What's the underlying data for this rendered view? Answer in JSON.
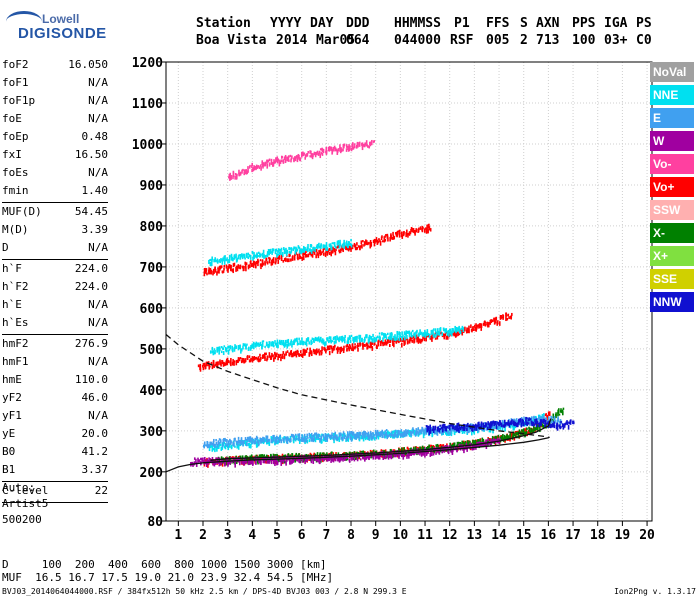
{
  "logo": {
    "line1": "Lowell",
    "line2": "DIGISONDE"
  },
  "header": {
    "labels": [
      "Station",
      "YYYY",
      "DAY",
      "DDD",
      "HHMMSS",
      "P1",
      "FFS",
      "S",
      "AXN",
      "PPS",
      "IGA",
      "PS"
    ],
    "values": [
      "Boa Vista",
      "2014",
      "Mar05",
      "064",
      "044000",
      "RSF",
      "005",
      "2",
      "713",
      "100",
      "03+",
      "C0"
    ]
  },
  "params": [
    {
      "k": "foF2",
      "v": "16.050"
    },
    {
      "k": "foF1",
      "v": "N/A"
    },
    {
      "k": "foF1p",
      "v": "N/A"
    },
    {
      "k": "foE",
      "v": "N/A"
    },
    {
      "k": "foEp",
      "v": "0.48"
    },
    {
      "k": "fxI",
      "v": "16.50"
    },
    {
      "k": "foEs",
      "v": "N/A"
    },
    {
      "k": "fmin",
      "v": "1.40"
    },
    {
      "sep": true
    },
    {
      "k": "MUF(D)",
      "v": "54.45"
    },
    {
      "k": "M(D)",
      "v": "3.39"
    },
    {
      "k": "D",
      "v": "N/A"
    },
    {
      "sep": true
    },
    {
      "k": "h`F",
      "v": "224.0"
    },
    {
      "k": "h`F2",
      "v": "224.0"
    },
    {
      "k": "h`E",
      "v": "N/A"
    },
    {
      "k": "h`Es",
      "v": "N/A"
    },
    {
      "sep": true
    },
    {
      "k": "hmF2",
      "v": "276.9"
    },
    {
      "k": "hmF1",
      "v": "N/A"
    },
    {
      "k": "hmE",
      "v": "110.0"
    },
    {
      "k": "yF2",
      "v": "46.0"
    },
    {
      "k": "yF1",
      "v": "N/A"
    },
    {
      "k": "yE",
      "v": "20.0"
    },
    {
      "k": "B0",
      "v": "41.2"
    },
    {
      "k": "B1",
      "v": "3.37"
    },
    {
      "sep": true
    },
    {
      "k": "C-level",
      "v": "22"
    },
    {
      "sep": true
    }
  ],
  "auto": [
    "Auto:",
    "Artist5",
    "500200"
  ],
  "d_table": {
    "d_label": "D",
    "d_values": [
      "100",
      "200",
      "400",
      "600",
      "800",
      "1000",
      "1500",
      "3000"
    ],
    "d_unit": "[km]",
    "muf_label": "MUF",
    "muf_values": [
      "16.5",
      "16.7",
      "17.5",
      "19.0",
      "21.0",
      "23.9",
      "32.4",
      "54.5"
    ],
    "muf_unit": "[MHz]"
  },
  "footer": "BVJ03_2014064044000.RSF / 384fx512h 50 kHz 2.5 km / DPS-4D BVJ03 003 / 2.8 N 299.3 E",
  "version": "Ion2Png v. 1.3.17",
  "legend": [
    {
      "label": "NoVal",
      "color": "#a0a0a0"
    },
    {
      "label": "NNE",
      "color": "#00e0f0"
    },
    {
      "label": "E",
      "color": "#40a0f0"
    },
    {
      "label": "W",
      "color": "#a000a0"
    },
    {
      "label": "Vo-",
      "color": "#ff40a0"
    },
    {
      "label": "Vo+",
      "color": "#ff0000"
    },
    {
      "label": "SSW",
      "color": "#ffb0b0"
    },
    {
      "label": "X-",
      "color": "#008000"
    },
    {
      "label": "X+",
      "color": "#80e040"
    },
    {
      "label": "SSE",
      "color": "#d0d000"
    },
    {
      "label": "NNW",
      "color": "#1010d0"
    }
  ],
  "chart_data": {
    "type": "scatter",
    "title": "",
    "xlabel": "",
    "ylabel": "",
    "xlim": [
      0.5,
      20.2
    ],
    "ylim": [
      80,
      1200
    ],
    "xticks": [
      1,
      2,
      3,
      4,
      5,
      6,
      7,
      8,
      9,
      10,
      11,
      12,
      13,
      14,
      15,
      16,
      17,
      18,
      19,
      20
    ],
    "yticks": [
      80,
      200,
      300,
      400,
      500,
      600,
      700,
      800,
      900,
      1000,
      1100,
      1200
    ],
    "grid": true,
    "echo_traces": [
      {
        "name": "F2 1st hop O",
        "color": "#ff0000",
        "x": [
          2.0,
          4.0,
          6.0,
          8.0,
          10.0,
          12.0,
          13.0,
          14.0,
          15.0,
          15.6,
          16.0
        ],
        "y": [
          225,
          232,
          236,
          241,
          250,
          262,
          270,
          281,
          296,
          315,
          345
        ]
      },
      {
        "name": "F2 1st hop X",
        "color": "#008000",
        "x": [
          2.6,
          4.0,
          6.0,
          8.0,
          10.0,
          12.0,
          14.0,
          15.0,
          16.0,
          16.6
        ],
        "y": [
          228,
          233,
          237,
          242,
          250,
          262,
          282,
          297,
          322,
          355
        ]
      },
      {
        "name": "F2 1st hop W",
        "color": "#a000a0",
        "x": [
          1.5,
          2.0,
          3.0,
          5.0,
          8.0,
          11.0,
          13.0,
          14.0
        ],
        "y": [
          225,
          228,
          226,
          230,
          236,
          250,
          263,
          280
        ]
      },
      {
        "name": "F2 spread NNE",
        "color": "#00e0f0",
        "x": [
          2.2,
          3.5,
          5.0,
          7.0,
          9.0,
          11.0,
          13.0,
          14.0,
          15.0,
          15.8
        ],
        "y": [
          260,
          270,
          280,
          285,
          290,
          298,
          306,
          312,
          320,
          335
        ]
      },
      {
        "name": "F2 spread E",
        "color": "#40a0f0",
        "x": [
          2.0,
          4.0,
          6.0,
          8.0,
          10.0,
          12.0,
          13.5,
          14.5,
          15.5,
          16.5
        ],
        "y": [
          270,
          278,
          285,
          290,
          297,
          305,
          313,
          322,
          330,
          325
        ]
      },
      {
        "name": "F2 spread NNW",
        "color": "#1010d0",
        "x": [
          11.0,
          12.0,
          13.0,
          14.0,
          15.0,
          15.7,
          16.3,
          17.0
        ],
        "y": [
          305,
          310,
          312,
          318,
          325,
          320,
          315,
          320
        ]
      },
      {
        "name": "F2 2nd hop",
        "color": "#ff0000",
        "x": [
          1.8,
          2.5,
          4.0,
          6.0,
          8.0,
          10.0,
          12.0,
          13.0,
          13.8,
          14.5
        ],
        "y": [
          458,
          465,
          478,
          492,
          505,
          520,
          538,
          553,
          568,
          585
        ]
      },
      {
        "name": "F2 2nd hop NNE",
        "color": "#00e0f0",
        "x": [
          2.3,
          3.5,
          5.0,
          7.0,
          9.0,
          11.0,
          12.5
        ],
        "y": [
          495,
          505,
          515,
          522,
          530,
          540,
          548
        ]
      },
      {
        "name": "F2 3rd hop",
        "color": "#ff0000",
        "x": [
          2.0,
          3.0,
          4.0,
          6.0,
          8.0,
          9.0,
          10.0,
          11.2
        ],
        "y": [
          688,
          698,
          708,
          730,
          750,
          765,
          782,
          798
        ]
      },
      {
        "name": "F2 3rd hop NNE",
        "color": "#00e0f0",
        "x": [
          2.2,
          4.0,
          6.0,
          8.0
        ],
        "y": [
          715,
          730,
          745,
          760
        ]
      },
      {
        "name": "F2 4th hop",
        "color": "#ff40a0",
        "x": [
          3.0,
          4.0,
          5.0,
          6.0,
          7.0,
          8.0,
          8.9
        ],
        "y": [
          920,
          945,
          960,
          972,
          985,
          995,
          1002
        ]
      }
    ],
    "fitted_curves": [
      {
        "name": "true height profile",
        "style": "solid",
        "x": [
          0.5,
          1.0,
          1.5,
          2.0,
          3.0,
          4.0,
          6.0,
          8.0,
          10.0,
          12.0,
          14.0,
          15.0,
          15.6,
          16.0,
          16.05
        ],
        "y": [
          200,
          212,
          218,
          222,
          226,
          229,
          233,
          238,
          245,
          254,
          265,
          272,
          278,
          283,
          285
        ]
      },
      {
        "name": "MUF curve",
        "style": "dashed",
        "x": [
          0.5,
          1.0,
          1.5,
          2.0,
          3.0,
          4.0,
          5.0,
          6.0,
          8.0,
          10.0,
          12.0,
          14.0,
          15.0,
          16.0
        ],
        "y": [
          535,
          510,
          490,
          470,
          445,
          425,
          405,
          388,
          363,
          340,
          318,
          300,
          293,
          285
        ]
      },
      {
        "name": "trace fit",
        "style": "solid",
        "x": [
          2.3,
          3.0,
          5.0,
          7.0,
          9.0,
          11.0,
          13.0,
          14.0,
          15.0,
          15.5,
          16.0,
          16.1
        ],
        "y": [
          228,
          232,
          236,
          240,
          246,
          254,
          266,
          275,
          288,
          297,
          312,
          330
        ]
      }
    ]
  }
}
